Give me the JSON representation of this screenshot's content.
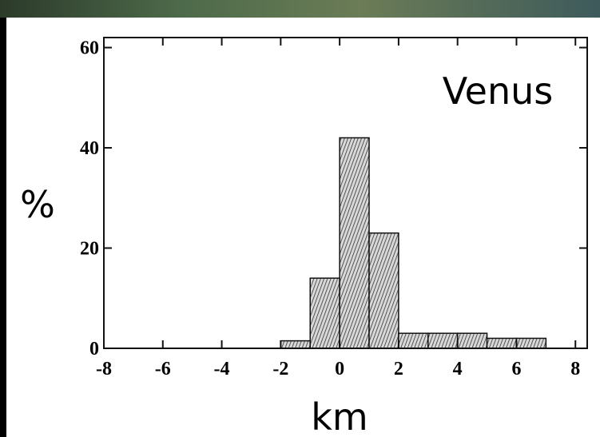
{
  "chart_data": {
    "type": "histogram",
    "annotation": "Venus",
    "ylabel": "%",
    "xlabel": "km",
    "bins": [
      -2,
      -1,
      0,
      1,
      2,
      3,
      4,
      5,
      6,
      7
    ],
    "values": [
      1.5,
      14,
      42,
      23,
      3,
      3,
      3,
      2,
      2
    ],
    "xlim": [
      -8,
      8.4
    ],
    "ylim": [
      0,
      62
    ],
    "xticks": [
      -8,
      -6,
      -4,
      -2,
      0,
      2,
      4,
      6,
      8
    ],
    "yticks": [
      0,
      20,
      40,
      60
    ]
  }
}
